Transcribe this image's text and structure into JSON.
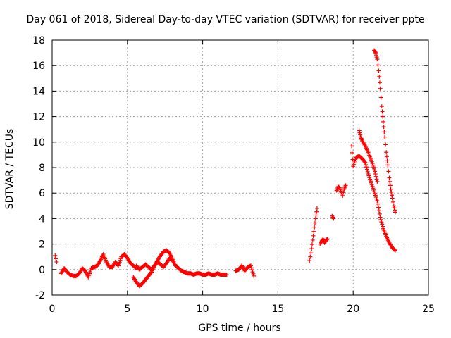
{
  "chart_data": {
    "type": "scatter",
    "title": "Day 061 of 2018, Sidereal Day-to-day VTEC variation (SDTVAR) for receiver ppte",
    "xlabel": "GPS time / hours",
    "ylabel": "SDTVAR / TECUs",
    "xlim": [
      0,
      25
    ],
    "ylim": [
      -2,
      18
    ],
    "xticks": [
      0,
      5,
      10,
      15,
      20,
      25
    ],
    "yticks": [
      -2,
      0,
      2,
      4,
      6,
      8,
      10,
      12,
      14,
      16,
      18
    ],
    "grid": true,
    "marker": "+",
    "color": "#ff0000",
    "series": [
      {
        "name": "seg1",
        "x": [
          0.2,
          0.3
        ],
        "y": [
          1.1,
          0.6
        ]
      },
      {
        "name": "seg2",
        "x": [
          0.6,
          0.8,
          1.0,
          1.2,
          1.4,
          1.6,
          1.8,
          2.0,
          2.2,
          2.4,
          2.6,
          2.8,
          3.0,
          3.2,
          3.4,
          3.6,
          3.8,
          4.0,
          4.2,
          4.4,
          4.6,
          4.8,
          5.0,
          5.2,
          5.4,
          5.6
        ],
        "y": [
          -0.3,
          0.1,
          -0.2,
          -0.4,
          -0.5,
          -0.5,
          -0.3,
          0.1,
          -0.1,
          -0.6,
          0.1,
          0.2,
          0.3,
          0.7,
          1.2,
          0.6,
          0.2,
          0.2,
          0.6,
          0.3,
          1.0,
          1.2,
          0.9,
          0.5,
          0.3,
          0.1
        ]
      },
      {
        "name": "seg3",
        "x": [
          5.4,
          5.6,
          5.8,
          6.0,
          6.2,
          6.4,
          6.6,
          6.8,
          7.0,
          7.2,
          7.4,
          7.6,
          7.8,
          8.0,
          8.2,
          8.4,
          8.6,
          8.8,
          9.0,
          9.2,
          9.4,
          9.6,
          9.8,
          10.0,
          10.2,
          10.4,
          10.6,
          10.8,
          11.0,
          11.2,
          11.4,
          11.6
        ],
        "y": [
          -0.6,
          -1.0,
          -1.3,
          -1.1,
          -0.8,
          -0.5,
          -0.2,
          0.3,
          0.7,
          1.1,
          1.4,
          1.5,
          1.3,
          0.8,
          0.3,
          0.1,
          -0.1,
          -0.2,
          -0.3,
          -0.3,
          -0.4,
          -0.3,
          -0.3,
          -0.4,
          -0.4,
          -0.3,
          -0.4,
          -0.4,
          -0.3,
          -0.4,
          -0.4,
          -0.4
        ]
      },
      {
        "name": "seg4",
        "x": [
          5.6,
          5.8,
          6.0,
          6.2,
          6.4,
          6.6,
          6.8,
          7.0,
          7.2,
          7.4,
          7.6,
          7.8,
          8.0
        ],
        "y": [
          0.3,
          0.0,
          0.2,
          0.4,
          0.2,
          0.0,
          0.3,
          0.6,
          0.4,
          0.2,
          0.5,
          0.9,
          0.7
        ]
      },
      {
        "name": "seg5",
        "x": [
          12.2,
          12.4,
          12.6,
          12.8,
          13.0,
          13.2,
          13.4
        ],
        "y": [
          -0.1,
          0.0,
          0.3,
          -0.1,
          0.2,
          0.3,
          -0.5
        ]
      },
      {
        "name": "seg6",
        "x": [
          17.1,
          17.2,
          17.5,
          17.6
        ],
        "y": [
          0.7,
          1.3,
          4.0,
          4.8
        ]
      },
      {
        "name": "seg7",
        "x": [
          17.8,
          17.9,
          18.0,
          18.1,
          18.2,
          18.3
        ],
        "y": [
          2.0,
          2.2,
          2.4,
          2.1,
          2.3,
          2.4
        ]
      },
      {
        "name": "seg8",
        "x": [
          18.6,
          18.7
        ],
        "y": [
          4.2,
          4.0
        ]
      },
      {
        "name": "seg9",
        "x": [
          18.9,
          19.0,
          19.1,
          19.3,
          19.4,
          19.5
        ],
        "y": [
          6.2,
          6.5,
          6.4,
          5.8,
          6.3,
          6.6
        ]
      },
      {
        "name": "seg10",
        "x": [
          19.9,
          20.0,
          20.1,
          20.2,
          20.4,
          20.6,
          20.8,
          21.0,
          21.2,
          21.4,
          21.6,
          21.8,
          22.0,
          22.2,
          22.4,
          22.6,
          22.8
        ],
        "y": [
          9.7,
          8.1,
          8.5,
          8.8,
          8.9,
          8.7,
          8.4,
          7.5,
          6.8,
          6.1,
          5.4,
          4.1,
          3.2,
          2.6,
          2.1,
          1.7,
          1.5
        ]
      },
      {
        "name": "seg11",
        "x": [
          20.4,
          20.5,
          20.6,
          20.8,
          21.0,
          21.2,
          21.4,
          21.6
        ],
        "y": [
          10.9,
          10.4,
          10.1,
          9.7,
          9.2,
          8.6,
          7.9,
          6.9
        ]
      },
      {
        "name": "seg12",
        "x": [
          21.4,
          21.5,
          21.6,
          21.7,
          21.8,
          21.9,
          22.0,
          22.1,
          22.2,
          22.3,
          22.4,
          22.5,
          22.6,
          22.7,
          22.8
        ],
        "y": [
          17.2,
          17.0,
          16.5,
          15.6,
          14.2,
          12.8,
          11.6,
          10.4,
          9.2,
          8.2,
          7.2,
          6.3,
          5.6,
          5.0,
          4.5
        ]
      }
    ]
  }
}
